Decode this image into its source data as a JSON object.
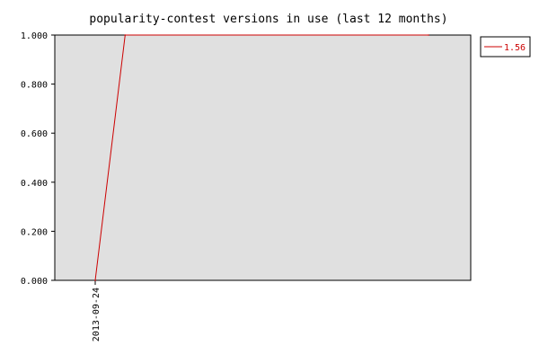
{
  "chart_data": {
    "type": "line",
    "title": "popularity-contest versions in use (last 12 months)",
    "xlabel": "",
    "ylabel": "",
    "x_tick_labels": [
      "2013-09-24"
    ],
    "y_tick_labels": [
      "1.000",
      "0.800",
      "0.600",
      "0.400",
      "0.200",
      "0.000"
    ],
    "ylim": [
      0,
      1
    ],
    "grid": false,
    "legend_position": "top-right",
    "series": [
      {
        "name": "1.56",
        "color": "#cc0000",
        "points": [
          {
            "x": "2013-09-24",
            "y": 0.0
          },
          {
            "x": "2013-10-24",
            "y": 1.0
          },
          {
            "x": "2014-08-24",
            "y": 1.0
          }
        ]
      }
    ],
    "plot_background": "#e0e0e0"
  }
}
